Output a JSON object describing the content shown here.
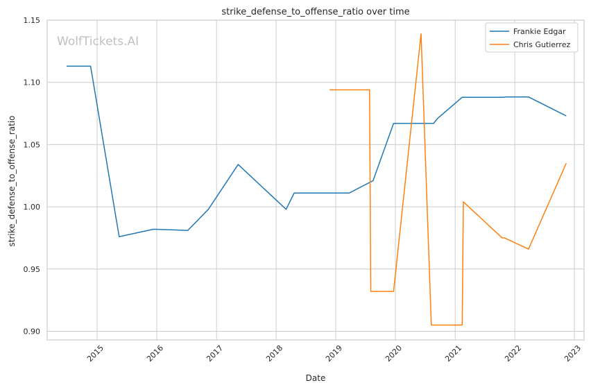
{
  "chart_data": {
    "type": "line",
    "title": "strike_defense_to_offense_ratio over time",
    "xlabel": "Date",
    "ylabel": "strike_defense_to_offense_ratio",
    "watermark": "WolfTickets.AI",
    "ylim": [
      0.893,
      1.15
    ],
    "xlim": [
      "2014-03-01",
      "2023-03-01"
    ],
    "yticks": [
      "0.90",
      "0.95",
      "1.00",
      "1.05",
      "1.10",
      "1.15"
    ],
    "xticks": [
      "2015",
      "2016",
      "2017",
      "2018",
      "2019",
      "2020",
      "2021",
      "2022",
      "2023"
    ],
    "grid": true,
    "legend": "top-right",
    "colors": {
      "Frankie Edgar": "#1f77b4",
      "Chris Gutierrez": "#ff7f0e",
      "grid": "#cccccc",
      "axes": "#cccccc"
    },
    "series": [
      {
        "name": "Frankie Edgar",
        "color": "#1f77b4",
        "x": [
          "2014-06-28",
          "2014-11-22",
          "2015-05-16",
          "2015-12-12",
          "2016-07-09",
          "2016-11-12",
          "2017-05-13",
          "2018-03-03",
          "2018-04-21",
          "2019-03-23",
          "2019-08-17",
          "2019-12-21",
          "2020-08-22",
          "2020-09-15",
          "2021-02-13",
          "2021-10-23",
          "2021-11-06",
          "2022-03-26",
          "2022-11-12"
        ],
        "values": [
          1.113,
          1.113,
          0.976,
          0.982,
          0.981,
          0.998,
          1.034,
          0.998,
          1.011,
          1.011,
          1.021,
          1.067,
          1.067,
          1.071,
          1.088,
          1.088,
          1.0883,
          1.0883,
          1.073
        ]
      },
      {
        "name": "Chris Gutierrez",
        "color": "#ff7f0e",
        "x": [
          "2018-11-24",
          "2019-07-27",
          "2019-08-03",
          "2019-12-21",
          "2020-06-06",
          "2020-08-08",
          "2021-02-13",
          "2021-02-20",
          "2021-10-16",
          "2021-10-30",
          "2022-03-26",
          "2022-11-12"
        ],
        "values": [
          1.094,
          1.094,
          0.932,
          0.932,
          1.139,
          0.905,
          0.905,
          1.004,
          0.975,
          0.975,
          0.966,
          1.035
        ]
      }
    ]
  }
}
